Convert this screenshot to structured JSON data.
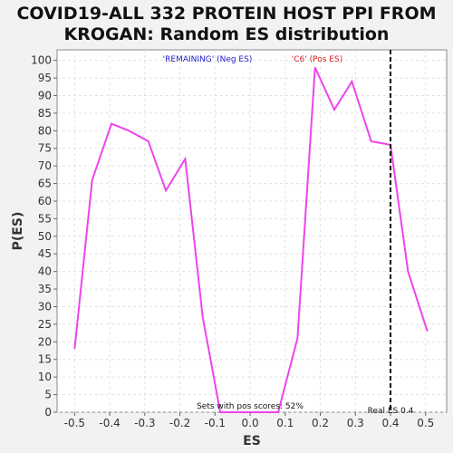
{
  "chart_data": {
    "type": "line",
    "title_line1": "COVID19-ALL 332 PROTEIN HOST PPI FROM",
    "title_line2": "KROGAN: Random ES distribution",
    "xlabel": "ES",
    "ylabel": "P(ES)",
    "xlim": [
      -0.55,
      0.56
    ],
    "ylim": [
      0,
      103
    ],
    "x_ticks": [
      -0.5,
      -0.4,
      -0.3,
      -0.2,
      -0.1,
      0.0,
      0.1,
      0.2,
      0.3,
      0.4,
      0.5
    ],
    "x_tick_labels": [
      "-0.5",
      "-0.4",
      "-0.3",
      "-0.2",
      "-0.1",
      "0.0",
      "0.1",
      "0.2",
      "0.3",
      "0.4",
      "0.5"
    ],
    "y_ticks": [
      0,
      5,
      10,
      15,
      20,
      25,
      30,
      35,
      40,
      45,
      50,
      55,
      60,
      65,
      70,
      75,
      80,
      85,
      90,
      95,
      100
    ],
    "y_tick_labels": [
      "0",
      "5",
      "10",
      "15",
      "20",
      "25",
      "30",
      "35",
      "40",
      "45",
      "50",
      "55",
      "60",
      "65",
      "70",
      "75",
      "80",
      "85",
      "90",
      "95",
      "100"
    ],
    "grid": true,
    "series": [
      {
        "color": "#ee44ee",
        "x": [
          -0.5,
          -0.45,
          -0.395,
          -0.345,
          -0.29,
          -0.24,
          -0.185,
          -0.135,
          -0.085,
          -0.03,
          0.02,
          0.08,
          0.135,
          0.185,
          0.24,
          0.29,
          0.345,
          0.4,
          0.45,
          0.505
        ],
        "y": [
          18,
          66,
          82,
          80,
          77,
          63,
          72,
          27,
          0,
          0,
          0,
          0,
          21,
          98,
          86,
          94,
          77,
          76,
          40,
          23
        ]
      }
    ],
    "real_es": 0.4,
    "real_es_color": "#000000",
    "legend_neg": {
      "text": "'REMAINING' (Neg ES)",
      "color": "#2222cc"
    },
    "legend_pos": {
      "text": "'C6' (Pos ES)",
      "color": "#dd2222"
    },
    "annotation_sets": "Sets with pos scores: 52%",
    "annotation_real": "Real ES 0.4"
  }
}
